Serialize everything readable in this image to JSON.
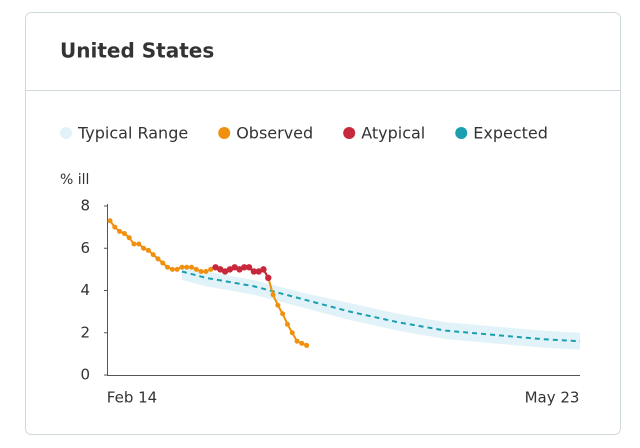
{
  "chart_data": {
    "type": "line",
    "title": "United States",
    "y_label": "% ill",
    "xlim": [
      0,
      98
    ],
    "xticks": [
      {
        "value": 0,
        "label": "Feb 14"
      },
      {
        "value": 98,
        "label": "May 23"
      }
    ],
    "ylim": [
      0,
      8
    ],
    "yticks": [
      0,
      2,
      4,
      6,
      8
    ],
    "series": [
      {
        "name": "Typical Range",
        "color": "#e1f3f8",
        "x": [
          15,
          20,
          30,
          40,
          50,
          60,
          70,
          80,
          90,
          98
        ],
        "lower": [
          4.5,
          4.2,
          3.8,
          3.2,
          2.6,
          2.1,
          1.7,
          1.5,
          1.3,
          1.2
        ],
        "upper": [
          5.2,
          4.9,
          4.5,
          3.9,
          3.4,
          2.9,
          2.5,
          2.3,
          2.1,
          2.0
        ]
      },
      {
        "name": "Observed",
        "color": "#f0900e",
        "x": [
          0,
          1,
          2,
          3,
          4,
          5,
          6,
          7,
          8,
          9,
          10,
          11,
          12,
          13,
          14,
          15,
          16,
          17,
          18,
          19,
          20,
          21,
          22,
          23,
          24,
          25,
          26,
          27,
          28,
          29,
          30,
          31,
          32,
          33,
          34,
          35,
          36,
          37,
          38,
          39,
          40,
          41
        ],
        "values": [
          7.3,
          7.0,
          6.8,
          6.7,
          6.5,
          6.2,
          6.2,
          6.0,
          5.9,
          5.7,
          5.5,
          5.3,
          5.1,
          5.0,
          5.0,
          5.1,
          5.1,
          5.1,
          5.0,
          4.9,
          4.9,
          5.0,
          5.1,
          5.0,
          4.9,
          5.0,
          5.1,
          5.0,
          5.1,
          5.1,
          4.9,
          4.9,
          5.0,
          4.6,
          3.8,
          3.3,
          2.9,
          2.4,
          2.0,
          1.6,
          1.5,
          1.4
        ]
      },
      {
        "name": "Atypical",
        "color": "#c8283c",
        "x": [
          22,
          23,
          24,
          25,
          26,
          27,
          28,
          29,
          30,
          31,
          32,
          33
        ],
        "values": [
          5.1,
          5.0,
          4.9,
          5.0,
          5.1,
          5.0,
          5.1,
          5.1,
          4.9,
          4.9,
          5.0,
          4.6
        ]
      },
      {
        "name": "Expected",
        "color": "#1a9fb0",
        "x": [
          15,
          20,
          30,
          40,
          50,
          60,
          70,
          80,
          90,
          98
        ],
        "values": [
          4.9,
          4.6,
          4.2,
          3.6,
          3.0,
          2.5,
          2.1,
          1.9,
          1.7,
          1.6
        ]
      }
    ]
  }
}
